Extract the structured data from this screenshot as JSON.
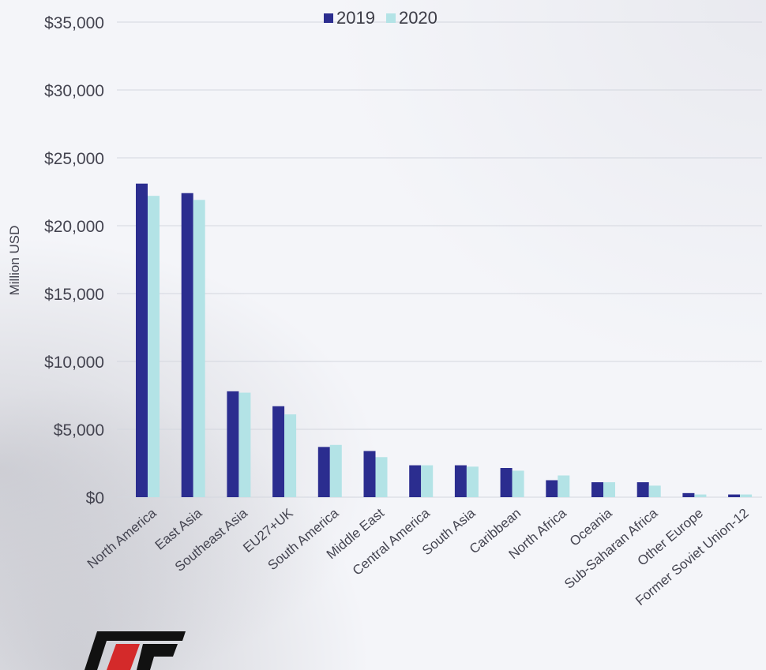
{
  "colors": {
    "series_2019": "#2b2d8f",
    "series_2020": "#b3e3e6",
    "grid": "#d3d6de",
    "text": "#444450"
  },
  "legend": {
    "item_2019": "2019",
    "item_2020": "2020"
  },
  "chart_data": {
    "type": "bar",
    "title": "",
    "xlabel": "",
    "ylabel": "Million USD",
    "ylim": [
      0,
      35000
    ],
    "yticks": [
      "$0",
      "$5,000",
      "$10,000",
      "$15,000",
      "$20,000",
      "$25,000",
      "$30,000",
      "$35,000"
    ],
    "legend_position": "top-center",
    "grid": true,
    "categories": [
      "North America",
      "East Asia",
      "Southeast Asia",
      "EU27+UK",
      "South America",
      "Middle East",
      "Central America",
      "South Asia",
      "Caribbean",
      "North Africa",
      "Oceania",
      "Sub-Saharan Africa",
      "Other Europe",
      "Former Soviet Union-12"
    ],
    "series": [
      {
        "name": "2019",
        "values": [
          23100,
          22400,
          7800,
          6700,
          3700,
          3400,
          2350,
          2350,
          2150,
          1250,
          1100,
          1100,
          300,
          200
        ]
      },
      {
        "name": "2020",
        "values": [
          22200,
          21900,
          7700,
          6100,
          3850,
          2950,
          2350,
          2250,
          1950,
          1600,
          1100,
          850,
          200,
          200
        ]
      }
    ]
  }
}
